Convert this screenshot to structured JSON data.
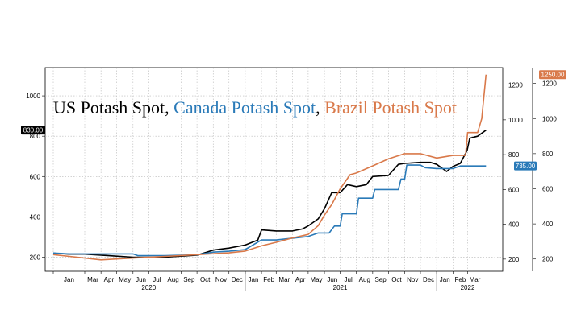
{
  "chart_data": {
    "type": "line",
    "title_parts": [
      {
        "text": "US Potash Spot",
        "color": "#000000"
      },
      {
        "text": ", ",
        "color": "#000000"
      },
      {
        "text": "Canada Potash Spot",
        "color": "#2a7ab8"
      },
      {
        "text": ", ",
        "color": "#000000"
      },
      {
        "text": "Brazil Potash Spot",
        "color": "#d9794a"
      }
    ],
    "x_range": [
      "2020-01-01",
      "2022-04-20"
    ],
    "left_axis": {
      "ylim": [
        130,
        1140
      ],
      "ticks": [
        "200",
        "400",
        "600",
        "800",
        "1000"
      ]
    },
    "right_axis_outer": {
      "ylim": [
        130,
        1290
      ],
      "ticks": [
        "200",
        "400",
        "600",
        "800",
        "1000",
        "1200"
      ]
    },
    "right_axis_inner": {
      "ylim": [
        130,
        1300
      ],
      "ticks": [
        "200",
        "400",
        "600",
        "800",
        "1000",
        "1200"
      ]
    },
    "month_ticks": [
      {
        "label": "Jan",
        "date": "2020-01-01"
      },
      {
        "label": "Mar",
        "date": "2020-03-01"
      },
      {
        "label": "Apr",
        "date": "2020-04-01"
      },
      {
        "label": "May",
        "date": "2020-05-01"
      },
      {
        "label": "Jun",
        "date": "2020-06-01"
      },
      {
        "label": "Jul",
        "date": "2020-07-01"
      },
      {
        "label": "Aug",
        "date": "2020-08-01"
      },
      {
        "label": "Sep",
        "date": "2020-09-01"
      },
      {
        "label": "Oct",
        "date": "2020-10-01"
      },
      {
        "label": "Nov",
        "date": "2020-11-01"
      },
      {
        "label": "Dec",
        "date": "2020-12-01"
      },
      {
        "label": "Jan",
        "date": "2021-01-01"
      },
      {
        "label": "Feb",
        "date": "2021-02-01"
      },
      {
        "label": "Mar",
        "date": "2021-03-01"
      },
      {
        "label": "Apr",
        "date": "2021-04-01"
      },
      {
        "label": "May",
        "date": "2021-05-01"
      },
      {
        "label": "Jun",
        "date": "2021-06-01"
      },
      {
        "label": "Jul",
        "date": "2021-07-01"
      },
      {
        "label": "Aug",
        "date": "2021-08-01"
      },
      {
        "label": "Sep",
        "date": "2021-09-01"
      },
      {
        "label": "Oct",
        "date": "2021-10-01"
      },
      {
        "label": "Nov",
        "date": "2021-11-01"
      },
      {
        "label": "Dec",
        "date": "2021-12-01"
      },
      {
        "label": "Jan",
        "date": "2022-01-01"
      },
      {
        "label": "Feb",
        "date": "2022-02-01"
      },
      {
        "label": "Mar",
        "date": "2022-03-01"
      }
    ],
    "year_labels": [
      {
        "label": "2020",
        "date": "2020-07-01"
      },
      {
        "label": "2021",
        "date": "2021-07-01"
      },
      {
        "label": "2022",
        "date": "2022-03-01"
      }
    ],
    "year_dividers": [
      "2021-01-01",
      "2022-01-01"
    ],
    "grid": true,
    "legend": "title",
    "series": [
      {
        "name": "US Potash Spot",
        "axis": "left",
        "color": "#000000",
        "last_value_label": "830.00",
        "points": [
          [
            "2020-01-01",
            220
          ],
          [
            "2020-02-01",
            215
          ],
          [
            "2020-03-01",
            215
          ],
          [
            "2020-04-01",
            210
          ],
          [
            "2020-05-01",
            205
          ],
          [
            "2020-06-01",
            200
          ],
          [
            "2020-07-01",
            200
          ],
          [
            "2020-08-01",
            200
          ],
          [
            "2020-09-01",
            205
          ],
          [
            "2020-10-01",
            210
          ],
          [
            "2020-11-01",
            235
          ],
          [
            "2020-12-01",
            245
          ],
          [
            "2021-01-01",
            260
          ],
          [
            "2021-01-25",
            285
          ],
          [
            "2021-02-01",
            335
          ],
          [
            "2021-03-01",
            330
          ],
          [
            "2021-04-01",
            330
          ],
          [
            "2021-04-20",
            340
          ],
          [
            "2021-05-01",
            355
          ],
          [
            "2021-05-20",
            390
          ],
          [
            "2021-06-01",
            440
          ],
          [
            "2021-06-15",
            520
          ],
          [
            "2021-07-01",
            520
          ],
          [
            "2021-07-15",
            560
          ],
          [
            "2021-08-01",
            550
          ],
          [
            "2021-08-20",
            560
          ],
          [
            "2021-09-01",
            600
          ],
          [
            "2021-10-01",
            605
          ],
          [
            "2021-10-20",
            660
          ],
          [
            "2021-11-01",
            665
          ],
          [
            "2021-12-01",
            670
          ],
          [
            "2021-12-20",
            670
          ],
          [
            "2022-01-01",
            660
          ],
          [
            "2022-01-20",
            625
          ],
          [
            "2022-02-01",
            650
          ],
          [
            "2022-02-15",
            665
          ],
          [
            "2022-02-28",
            730
          ],
          [
            "2022-03-05",
            790
          ],
          [
            "2022-03-20",
            800
          ],
          [
            "2022-04-05",
            830
          ]
        ]
      },
      {
        "name": "Canada Potash Spot",
        "axis": "right_inner",
        "color": "#2a7ab8",
        "last_value_label": "735.00",
        "points": [
          [
            "2020-01-01",
            235
          ],
          [
            "2020-02-01",
            230
          ],
          [
            "2020-03-01",
            230
          ],
          [
            "2020-04-01",
            230
          ],
          [
            "2020-05-01",
            230
          ],
          [
            "2020-06-01",
            230
          ],
          [
            "2020-06-10",
            220
          ],
          [
            "2020-08-01",
            220
          ],
          [
            "2020-10-01",
            225
          ],
          [
            "2020-11-01",
            240
          ],
          [
            "2020-12-01",
            245
          ],
          [
            "2021-01-01",
            255
          ],
          [
            "2021-02-01",
            310
          ],
          [
            "2021-03-01",
            310
          ],
          [
            "2021-04-01",
            320
          ],
          [
            "2021-05-01",
            330
          ],
          [
            "2021-05-20",
            350
          ],
          [
            "2021-06-10",
            350
          ],
          [
            "2021-06-20",
            390
          ],
          [
            "2021-07-01",
            390
          ],
          [
            "2021-07-05",
            460
          ],
          [
            "2021-08-01",
            460
          ],
          [
            "2021-08-05",
            550
          ],
          [
            "2021-09-01",
            550
          ],
          [
            "2021-09-05",
            600
          ],
          [
            "2021-10-01",
            600
          ],
          [
            "2021-10-20",
            600
          ],
          [
            "2021-10-25",
            660
          ],
          [
            "2021-11-01",
            660
          ],
          [
            "2021-11-05",
            740
          ],
          [
            "2021-12-01",
            740
          ],
          [
            "2021-12-10",
            725
          ],
          [
            "2022-01-01",
            720
          ],
          [
            "2022-02-01",
            720
          ],
          [
            "2022-02-15",
            735
          ],
          [
            "2022-04-05",
            735
          ]
        ]
      },
      {
        "name": "Brazil Potash Spot",
        "axis": "right_outer",
        "color": "#d9794a",
        "last_value_label": "1250.00",
        "points": [
          [
            "2020-01-01",
            225
          ],
          [
            "2020-02-01",
            215
          ],
          [
            "2020-03-01",
            205
          ],
          [
            "2020-04-01",
            195
          ],
          [
            "2020-05-01",
            200
          ],
          [
            "2020-06-01",
            205
          ],
          [
            "2020-07-01",
            210
          ],
          [
            "2020-08-01",
            215
          ],
          [
            "2020-09-01",
            220
          ],
          [
            "2020-10-01",
            225
          ],
          [
            "2020-11-01",
            230
          ],
          [
            "2020-12-01",
            235
          ],
          [
            "2021-01-01",
            245
          ],
          [
            "2021-02-01",
            275
          ],
          [
            "2021-03-01",
            295
          ],
          [
            "2021-04-01",
            320
          ],
          [
            "2021-05-01",
            340
          ],
          [
            "2021-05-20",
            390
          ],
          [
            "2021-06-01",
            450
          ],
          [
            "2021-06-15",
            510
          ],
          [
            "2021-07-01",
            600
          ],
          [
            "2021-07-20",
            680
          ],
          [
            "2021-08-01",
            690
          ],
          [
            "2021-09-01",
            730
          ],
          [
            "2021-10-01",
            770
          ],
          [
            "2021-11-01",
            800
          ],
          [
            "2021-12-01",
            800
          ],
          [
            "2022-01-01",
            775
          ],
          [
            "2022-02-01",
            790
          ],
          [
            "2022-02-25",
            790
          ],
          [
            "2022-03-01",
            920
          ],
          [
            "2022-03-20",
            920
          ],
          [
            "2022-03-28",
            1000
          ],
          [
            "2022-04-05",
            1250
          ]
        ]
      }
    ]
  }
}
